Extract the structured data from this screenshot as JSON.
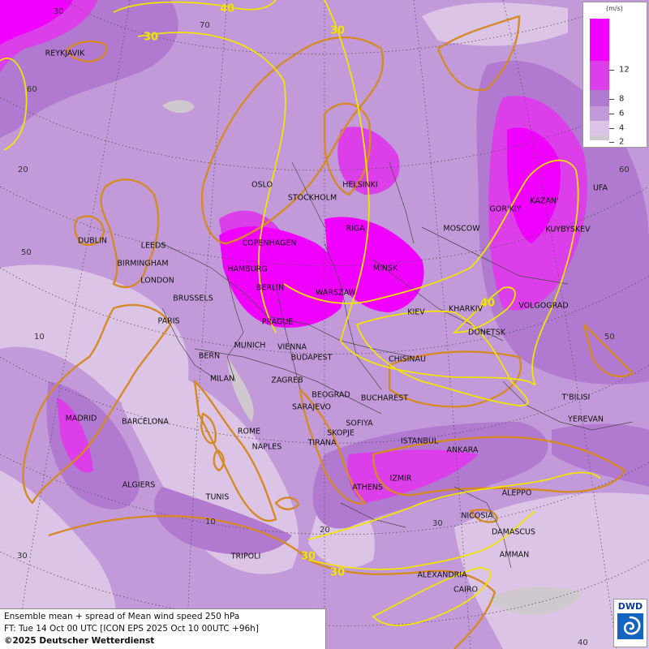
{
  "colors": {
    "l2": "#cfc9cf",
    "l4": "#dcc4e6",
    "l6": "#c39ad9",
    "l8": "#b279d0",
    "l12": "#dc3fe9",
    "l14": "#f000ff",
    "isoline": "#f1e400",
    "coast": "#d58a2a"
  },
  "legend": {
    "unit": "(m/s)",
    "levels": [
      "12",
      "8",
      "6",
      "4",
      "2"
    ]
  },
  "isotach_labels": [
    "40",
    "30",
    "30",
    "40",
    "30",
    "30"
  ],
  "grid_labels": [
    "30",
    "70",
    "60",
    "20",
    "50",
    "10",
    "30",
    "60",
    "50",
    "10",
    "20",
    "30",
    "40"
  ],
  "cities": [
    "REYKJAVIK",
    "OSLO",
    "STOCKHOLM",
    "HELSINKI",
    "DUBLIN",
    "LEEDS",
    "BIRMINGHAM",
    "LONDON",
    "COPENHAGEN",
    "HAMBURG",
    "BERLIN",
    "RIGA",
    "MINSK",
    "MOSCOW",
    "GOR'KIY",
    "KAZAN'",
    "UFA",
    "KUYBYSKEV",
    "WARSZAW",
    "KIEV",
    "KHARKIV",
    "VOLGOGRAD",
    "DONETSK",
    "BRUSSELS",
    "PARIS",
    "PRAGUE",
    "MUNICH",
    "VIENNA",
    "BUDAPEST",
    "BERN",
    "MILAN",
    "ZAGREB",
    "BEOGRAD",
    "CHISINAU",
    "BUCHAREST",
    "SARAJEVO",
    "SOFIYA",
    "SKOPJE",
    "TIRANA",
    "ROME",
    "NAPLES",
    "ISTANBUL",
    "ANKARA",
    "T'BILISI",
    "YEREVAN",
    "MADRID",
    "BARCELONA",
    "ALGIERS",
    "TUNIS",
    "IZMIR",
    "ATHENS",
    "ALEPPO",
    "NICOSIA",
    "DAMASCUS",
    "AMMAN",
    "TRIPOLI",
    "ALEXANDRIA",
    "CAIRO"
  ],
  "caption": {
    "line1": "Ensemble mean + spread of Mean wind speed 250 hPa",
    "line2": "FT: Tue 14 Oct 00 UTC [ICON EPS 2025 Oct 10 00UTC +96h]",
    "line3": "©2025 Deutscher Wetterdienst"
  },
  "logo": {
    "text": "DWD"
  }
}
